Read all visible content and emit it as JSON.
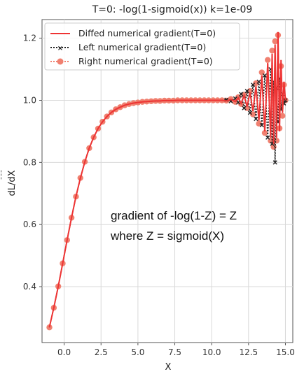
{
  "chart_data": {
    "type": "line",
    "title": "T=0: -log(1-sigmoid(x)) k=1e-09",
    "xlabel": "X",
    "ylabel": "dL/dX",
    "ylabel_prefix": "¯¯¯",
    "xlim": [
      -1.5,
      15.5
    ],
    "ylim": [
      0.22,
      1.26
    ],
    "xticks": [
      0.0,
      2.5,
      5.0,
      7.5,
      10.0,
      12.5,
      15.0
    ],
    "xtick_labels": [
      "0.0",
      "2.5",
      "5.0",
      "7.5",
      "10.0",
      "12.5",
      "15.0"
    ],
    "yticks": [
      0.4,
      0.6,
      0.8,
      1.0,
      1.2
    ],
    "ytick_labels": [
      "0.4",
      "0.6",
      "0.8",
      "1.0",
      "1.2"
    ],
    "grid": true,
    "legend_position": "top-left",
    "annotation_lines": [
      "gradient of -log(1-Z) = Z",
      "where Z = sigmoid(X)"
    ],
    "series": [
      {
        "name": "Diffed numerical gradient(T=0)",
        "style": "solid",
        "color": "#ee3333",
        "x": [
          -1.0,
          -0.7,
          -0.4,
          -0.1,
          0.2,
          0.5,
          0.8,
          1.1,
          1.4,
          1.7,
          2.0,
          2.3,
          2.6,
          2.9,
          3.2,
          3.5,
          3.8,
          4.1,
          4.4,
          4.7,
          5.0,
          5.3,
          5.6,
          5.9,
          6.2,
          6.5,
          6.8,
          7.1,
          7.4,
          7.7,
          8.0,
          8.3,
          8.6,
          8.9,
          9.2,
          9.5,
          9.8,
          10.1,
          10.4,
          10.7,
          11.0,
          11.3,
          11.6,
          11.8,
          12.0,
          12.2,
          12.4,
          12.6,
          12.8,
          13.0,
          13.2,
          13.4,
          13.6,
          13.8,
          14.0,
          14.1,
          14.2,
          14.3,
          14.4,
          14.5,
          14.6,
          14.7,
          14.8,
          14.9,
          15.0
        ],
        "y": [
          0.269,
          0.332,
          0.401,
          0.475,
          0.55,
          0.622,
          0.69,
          0.75,
          0.802,
          0.846,
          0.881,
          0.909,
          0.931,
          0.948,
          0.961,
          0.971,
          0.978,
          0.984,
          0.988,
          0.991,
          0.993,
          0.995,
          0.996,
          0.997,
          0.998,
          0.998,
          0.999,
          0.999,
          0.999,
          1.0,
          1.0,
          1.0,
          1.0,
          1.0,
          1.0,
          1.0,
          1.0,
          1.0,
          1.0,
          1.0,
          0.998,
          1.003,
          0.996,
          1.008,
          0.99,
          1.015,
          0.98,
          1.025,
          0.965,
          1.045,
          0.935,
          1.08,
          0.9,
          1.12,
          0.88,
          1.15,
          0.86,
          1.18,
          0.88,
          1.22,
          0.9,
          1.13,
          0.96,
          1.06,
          1.0
        ]
      },
      {
        "name": "Left numerical gradient(T=0)",
        "style": "dotted",
        "marker": "x",
        "color": "#222222",
        "x": [
          -1.0,
          -0.7,
          -0.4,
          -0.1,
          0.2,
          0.5,
          0.8,
          1.1,
          1.4,
          1.7,
          2.0,
          2.3,
          2.6,
          2.9,
          3.2,
          3.5,
          3.8,
          4.1,
          4.4,
          4.7,
          5.0,
          5.3,
          5.6,
          5.9,
          6.2,
          6.5,
          6.8,
          7.1,
          7.4,
          7.7,
          8.0,
          8.3,
          8.6,
          8.9,
          9.2,
          9.5,
          9.8,
          10.1,
          10.4,
          10.7,
          11.0,
          11.3,
          11.6,
          11.8,
          12.0,
          12.2,
          12.4,
          12.6,
          12.8,
          13.0,
          13.2,
          13.4,
          13.6,
          13.8,
          14.0,
          14.1,
          14.2,
          14.3,
          14.4,
          14.5,
          14.6,
          14.7,
          14.8,
          14.9,
          15.0
        ],
        "y": [
          0.269,
          0.332,
          0.401,
          0.475,
          0.55,
          0.622,
          0.69,
          0.75,
          0.802,
          0.846,
          0.881,
          0.909,
          0.931,
          0.948,
          0.961,
          0.971,
          0.978,
          0.984,
          0.988,
          0.991,
          0.993,
          0.995,
          0.996,
          0.997,
          0.998,
          0.998,
          0.999,
          0.999,
          0.999,
          1.0,
          1.0,
          1.0,
          1.0,
          1.0,
          1.0,
          1.0,
          1.0,
          1.0,
          1.0,
          1.0,
          1.002,
          0.997,
          1.006,
          0.993,
          1.02,
          0.975,
          1.03,
          0.96,
          1.05,
          0.94,
          1.06,
          0.92,
          1.08,
          0.88,
          1.1,
          0.86,
          1.06,
          0.8,
          1.04,
          0.93,
          1.07,
          0.97,
          1.02,
          0.99,
          1.0
        ]
      },
      {
        "name": "Right numerical gradient(T=0)",
        "style": "dotted",
        "marker": "o",
        "color": "#f08070",
        "x": [
          -1.0,
          -0.7,
          -0.4,
          -0.1,
          0.2,
          0.5,
          0.8,
          1.1,
          1.4,
          1.7,
          2.0,
          2.3,
          2.6,
          2.9,
          3.2,
          3.5,
          3.8,
          4.1,
          4.4,
          4.7,
          5.0,
          5.3,
          5.6,
          5.9,
          6.2,
          6.5,
          6.8,
          7.1,
          7.4,
          7.7,
          8.0,
          8.3,
          8.6,
          8.9,
          9.2,
          9.5,
          9.8,
          10.1,
          10.4,
          10.7,
          11.0,
          11.3,
          11.6,
          11.8,
          12.0,
          12.2,
          12.4,
          12.6,
          12.8,
          13.0,
          13.2,
          13.4,
          13.6,
          13.8,
          14.0,
          14.1,
          14.2,
          14.3,
          14.4,
          14.5,
          14.6,
          14.7,
          14.8,
          14.9,
          15.0
        ],
        "y": [
          0.269,
          0.332,
          0.401,
          0.475,
          0.55,
          0.622,
          0.69,
          0.75,
          0.802,
          0.846,
          0.881,
          0.909,
          0.931,
          0.948,
          0.961,
          0.971,
          0.978,
          0.984,
          0.988,
          0.991,
          0.993,
          0.995,
          0.996,
          0.997,
          0.998,
          0.998,
          0.999,
          0.999,
          0.999,
          1.0,
          1.0,
          1.0,
          1.0,
          1.0,
          1.0,
          1.0,
          1.0,
          1.0,
          1.0,
          1.0,
          0.999,
          1.004,
          0.995,
          1.01,
          0.988,
          1.018,
          0.975,
          1.03,
          0.955,
          1.055,
          0.925,
          1.09,
          0.895,
          1.13,
          0.87,
          1.16,
          0.85,
          1.19,
          0.87,
          1.21,
          0.91,
          1.11,
          0.95,
          1.05,
          1.0
        ]
      }
    ]
  }
}
